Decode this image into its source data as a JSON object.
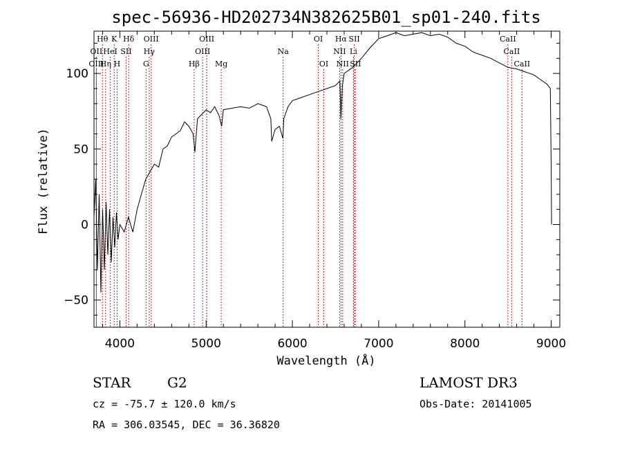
{
  "chart_data": {
    "type": "line",
    "title": "spec-56936-HD202734N382625B01_sp01-240.fits",
    "xlabel": "Wavelength (Å)",
    "ylabel": "Flux (relative)",
    "xlim": [
      3700,
      9100
    ],
    "ylim": [
      -68,
      128
    ],
    "x_ticks": [
      4000,
      5000,
      6000,
      7000,
      8000,
      9000
    ],
    "y_ticks": [
      -50,
      0,
      50,
      100
    ],
    "series": [
      {
        "name": "flux",
        "x": [
          3700,
          3720,
          3740,
          3760,
          3780,
          3800,
          3820,
          3840,
          3860,
          3880,
          3900,
          3920,
          3940,
          3960,
          3980,
          4000,
          4050,
          4100,
          4150,
          4200,
          4250,
          4300,
          4350,
          4400,
          4450,
          4500,
          4550,
          4600,
          4650,
          4700,
          4750,
          4800,
          4850,
          4870,
          4900,
          4950,
          5000,
          5050,
          5100,
          5150,
          5180,
          5200,
          5300,
          5400,
          5500,
          5600,
          5700,
          5750,
          5760,
          5800,
          5850,
          5890,
          5900,
          5950,
          6000,
          6100,
          6200,
          6300,
          6400,
          6500,
          6550,
          6563,
          6580,
          6600,
          6650,
          6700,
          6800,
          6900,
          7000,
          7100,
          7200,
          7300,
          7400,
          7500,
          7600,
          7700,
          7800,
          7900,
          8000,
          8100,
          8200,
          8300,
          8400,
          8500,
          8600,
          8700,
          8800,
          8900,
          8950,
          8990,
          9000,
          9005
        ],
        "y": [
          5,
          30,
          -30,
          20,
          -45,
          10,
          -30,
          15,
          -20,
          10,
          -25,
          5,
          -15,
          8,
          -10,
          0,
          -5,
          5,
          -5,
          10,
          20,
          30,
          35,
          40,
          38,
          50,
          52,
          58,
          60,
          62,
          68,
          65,
          60,
          48,
          70,
          73,
          76,
          74,
          78,
          72,
          65,
          76,
          77,
          78,
          77,
          80,
          78,
          70,
          55,
          63,
          65,
          57,
          70,
          78,
          82,
          84,
          86,
          88,
          90,
          92,
          95,
          70,
          92,
          100,
          102,
          104,
          110,
          117,
          123,
          125,
          127,
          125,
          126,
          127,
          125,
          126,
          124,
          120,
          118,
          114,
          112,
          110,
          107,
          104,
          103,
          101,
          99,
          95,
          93,
          90,
          40,
          0
        ]
      }
    ],
    "spectral_lines": [
      {
        "label": "Hθ",
        "x": 3798,
        "row": 0
      },
      {
        "label": "K",
        "x": 3934,
        "row": 0
      },
      {
        "label": "Hδ",
        "x": 4102,
        "row": 0
      },
      {
        "label": "OIII",
        "x": 4363,
        "row": 0
      },
      {
        "label": "OIII",
        "x": 5007,
        "row": 0
      },
      {
        "label": "OI",
        "x": 6300,
        "row": 0
      },
      {
        "label": "Hα",
        "x": 6563,
        "row": 0
      },
      {
        "label": "SII",
        "x": 6717,
        "row": 0
      },
      {
        "label": "CaII",
        "x": 8498,
        "row": 0
      },
      {
        "label": "OII",
        "x": 3727,
        "row": 1
      },
      {
        "label": "HeI",
        "x": 3889,
        "row": 1
      },
      {
        "label": "SII",
        "x": 4072,
        "row": 1
      },
      {
        "label": "Hγ",
        "x": 4340,
        "row": 1
      },
      {
        "label": "OIII",
        "x": 4959,
        "row": 1
      },
      {
        "label": "Na",
        "x": 5893,
        "row": 1
      },
      {
        "label": "NII",
        "x": 6548,
        "row": 1
      },
      {
        "label": "Li",
        "x": 6708,
        "row": 1
      },
      {
        "label": "CaII",
        "x": 8542,
        "row": 1
      },
      {
        "label": "OIII",
        "x": 3727,
        "row": 2
      },
      {
        "label": "Hη",
        "x": 3835,
        "row": 2
      },
      {
        "label": "H",
        "x": 3968,
        "row": 2
      },
      {
        "label": "G",
        "x": 4304,
        "row": 2
      },
      {
        "label": "Hβ",
        "x": 4861,
        "row": 2
      },
      {
        "label": "Mg",
        "x": 5175,
        "row": 2
      },
      {
        "label": "OI",
        "x": 6364,
        "row": 2
      },
      {
        "label": "NII",
        "x": 6583,
        "row": 2
      },
      {
        "label": "SII",
        "x": 6731,
        "row": 2
      },
      {
        "label": "CaII",
        "x": 8662,
        "row": 2
      }
    ]
  },
  "info": {
    "object_class": "STAR",
    "subclass": "G2",
    "survey": "LAMOST DR3",
    "velocity": "cz = -75.7 ± 120.0 km/s",
    "obs_date": "Obs-Date: 20141005",
    "coords": "RA = 306.03545, DEC =  36.36820"
  },
  "colors": {
    "axis": "#000000",
    "spectrum": "#000000",
    "line_marker": "#b22222"
  }
}
